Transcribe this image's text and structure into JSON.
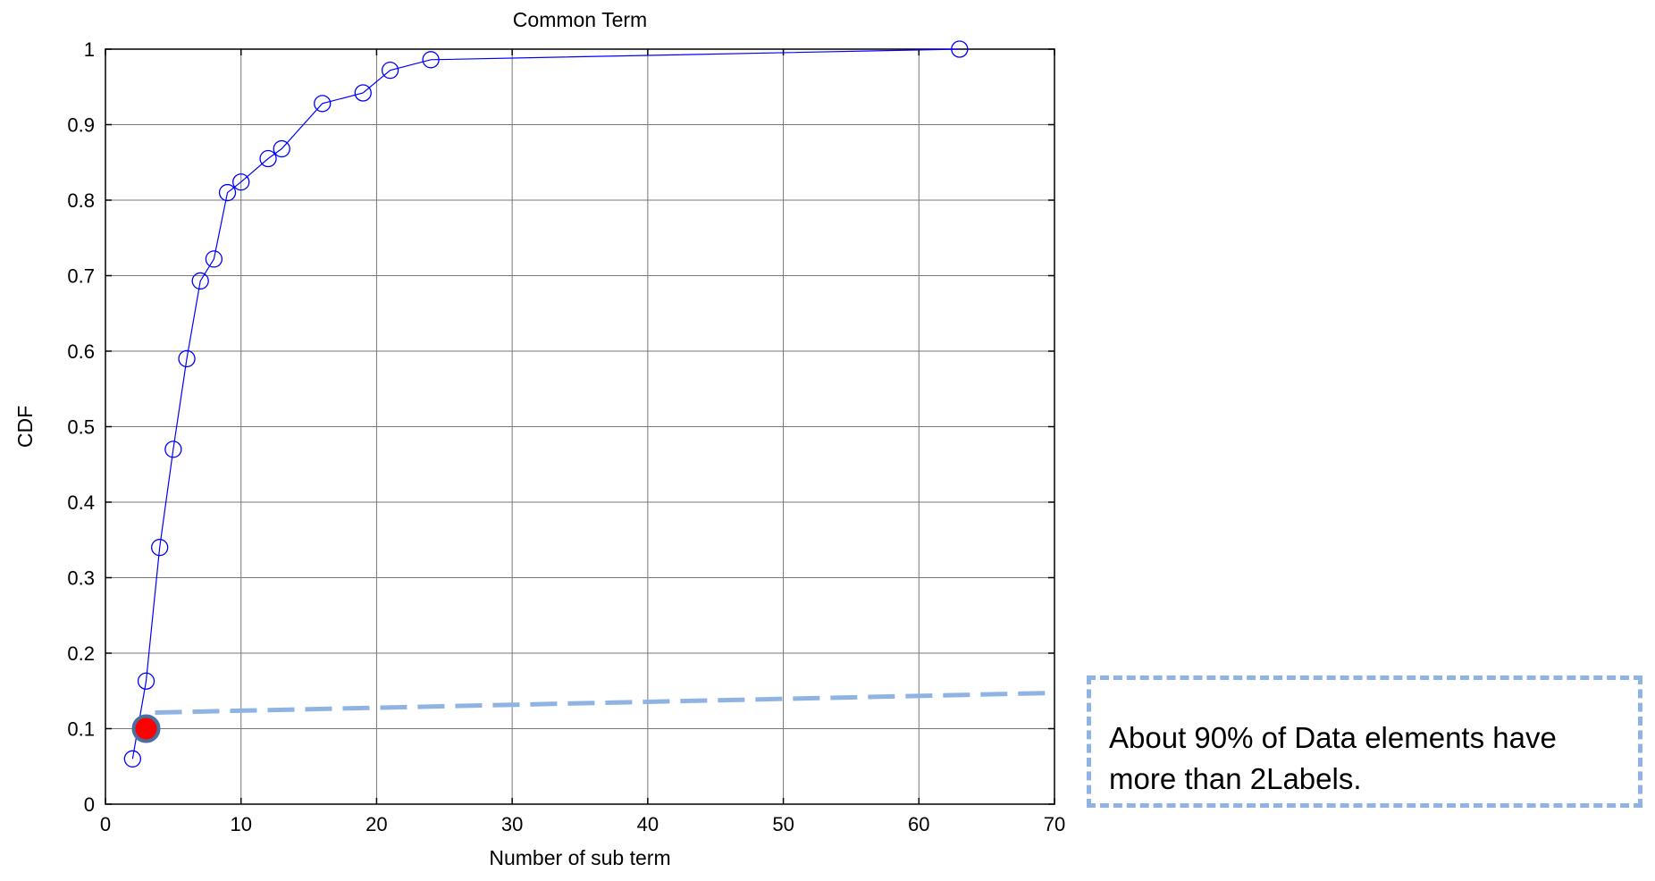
{
  "chart_data": {
    "type": "line",
    "title": "Common Term",
    "xlabel": "Number of sub term",
    "ylabel": "CDF",
    "xlim": [
      0,
      70
    ],
    "ylim": [
      0,
      1
    ],
    "xticks": [
      "0",
      "10",
      "20",
      "30",
      "40",
      "50",
      "60",
      "70"
    ],
    "yticks": [
      "0",
      "0.1",
      "0.2",
      "0.3",
      "0.4",
      "0.5",
      "0.6",
      "0.7",
      "0.8",
      "0.9",
      "1"
    ],
    "grid": true,
    "series": [
      {
        "color": "#0000ff",
        "marker": "circle",
        "x": [
          2,
          3,
          4,
          5,
          6,
          7,
          8,
          9,
          10,
          12,
          13,
          16,
          19,
          21,
          24,
          63
        ],
        "y": [
          0.06,
          0.163,
          0.34,
          0.47,
          0.59,
          0.693,
          0.722,
          0.81,
          0.824,
          0.855,
          0.868,
          0.928,
          0.942,
          0.972,
          0.986,
          1.0
        ]
      }
    ],
    "highlight_point": {
      "x": 3,
      "y": 0.1,
      "color": "#ff0000",
      "edge_color": "#4a6fa0"
    }
  },
  "callout": {
    "text_line1": "About 90% of Data elements have",
    "text_line2": "more than 2Labels.",
    "border_color": "#8fb4e3"
  }
}
